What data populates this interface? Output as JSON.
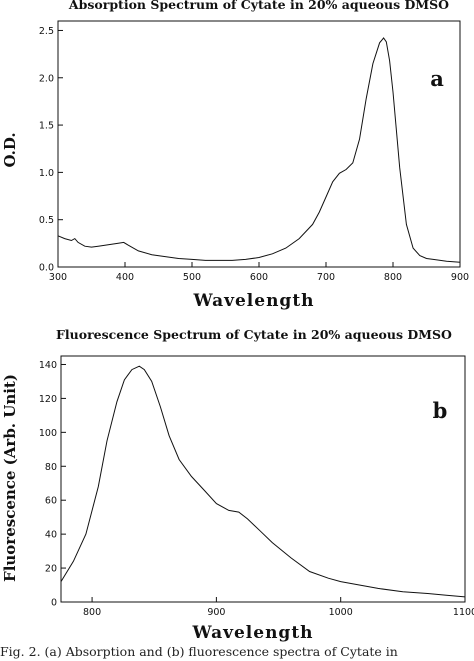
{
  "caption": "Fig. 2.  (a) Absorption and (b) fluorescence spectra of Cytate in",
  "chart_data": [
    {
      "type": "line",
      "title": "Absorption Spectrum of Cytate in 20% aqueous DMSO",
      "panel_label": "a",
      "xlabel": "Wavelength",
      "ylabel": "O.D.",
      "xlim": [
        300,
        900
      ],
      "ylim": [
        0,
        2.6
      ],
      "xticks": [
        300,
        400,
        500,
        600,
        700,
        800,
        900
      ],
      "yticks": [
        0.0,
        0.5,
        1.0,
        1.5,
        2.0,
        2.5
      ],
      "ytick_labels": [
        "0.0",
        "0.5",
        "1.0",
        "1.5",
        "2.0",
        "2.5"
      ],
      "grid": false,
      "legend": "none",
      "series": [
        {
          "x": [
            300,
            310,
            320,
            325,
            330,
            340,
            350,
            360,
            370,
            380,
            390,
            398,
            405,
            420,
            440,
            460,
            480,
            500,
            520,
            540,
            560,
            580,
            600,
            620,
            640,
            660,
            680,
            690,
            700,
            710,
            720,
            730,
            740,
            750,
            760,
            770,
            780,
            786,
            790,
            795,
            800,
            810,
            820,
            830,
            840,
            850,
            860,
            880,
            900
          ],
          "y": [
            0.33,
            0.3,
            0.28,
            0.3,
            0.26,
            0.22,
            0.21,
            0.22,
            0.23,
            0.24,
            0.25,
            0.26,
            0.23,
            0.17,
            0.13,
            0.11,
            0.09,
            0.08,
            0.07,
            0.07,
            0.07,
            0.08,
            0.1,
            0.14,
            0.2,
            0.3,
            0.45,
            0.58,
            0.74,
            0.9,
            0.99,
            1.03,
            1.1,
            1.35,
            1.78,
            2.15,
            2.37,
            2.42,
            2.38,
            2.18,
            1.85,
            1.05,
            0.45,
            0.2,
            0.12,
            0.09,
            0.08,
            0.06,
            0.05
          ]
        }
      ]
    },
    {
      "type": "line",
      "title": "Fluorescence Spectrum of Cytate in 20% aqueous DMSO",
      "panel_label": "b",
      "xlabel": "Wavelength",
      "ylabel": "Fluorescence (Arb. Unit)",
      "xlim": [
        775,
        1100
      ],
      "ylim": [
        0,
        145
      ],
      "xticks": [
        800,
        900,
        1000,
        1100
      ],
      "yticks": [
        0,
        20,
        40,
        60,
        80,
        100,
        120,
        140
      ],
      "grid": false,
      "legend": "none",
      "series": [
        {
          "x": [
            775,
            785,
            795,
            805,
            812,
            820,
            826,
            832,
            838,
            842,
            848,
            855,
            862,
            870,
            880,
            890,
            900,
            910,
            918,
            925,
            935,
            945,
            960,
            975,
            990,
            1000,
            1015,
            1030,
            1050,
            1070,
            1085,
            1100
          ],
          "y": [
            12,
            24,
            40,
            68,
            95,
            118,
            131,
            137,
            139,
            137,
            130,
            115,
            98,
            84,
            74,
            66,
            58,
            54,
            53,
            49,
            42,
            35,
            26,
            18,
            14,
            12,
            10,
            8,
            6,
            5,
            4,
            3
          ]
        }
      ]
    }
  ]
}
